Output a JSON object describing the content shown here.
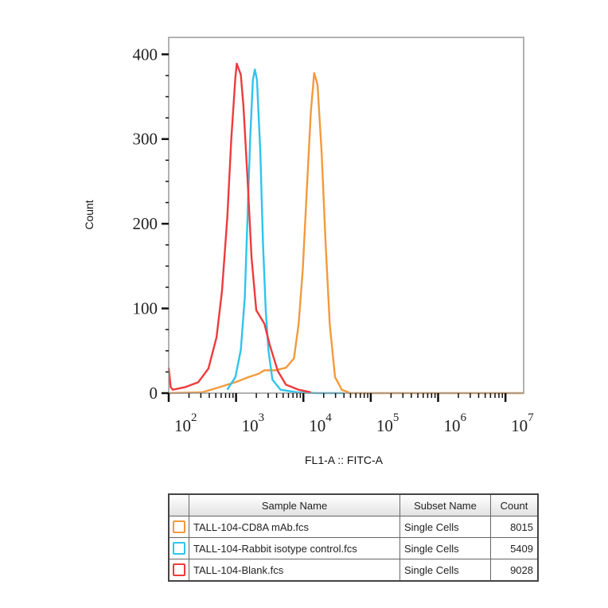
{
  "chart_data": {
    "type": "line",
    "xlabel": "FL1-A :: FITC-A",
    "ylabel": "Count",
    "x_scale": "log",
    "xlim": [
      100,
      18620871
    ],
    "ylim": [
      0,
      420
    ],
    "x_ticks": [
      100,
      1000,
      10000,
      100000,
      1000000,
      10000000
    ],
    "x_tick_labels": [
      {
        "base": "10",
        "exp": "2"
      },
      {
        "base": "10",
        "exp": "3"
      },
      {
        "base": "10",
        "exp": "4"
      },
      {
        "base": "10",
        "exp": "5"
      },
      {
        "base": "10",
        "exp": "6"
      },
      {
        "base": "10",
        "exp": "7"
      }
    ],
    "y_ticks": [
      0,
      100,
      200,
      300,
      400
    ],
    "y_tick_labels": [
      "0",
      "100",
      "200",
      "300",
      "400"
    ],
    "grid": false,
    "series": [
      {
        "name": "TALL-104-CD8A mAb.fcs",
        "color": "#f39a3c",
        "x": [
          100,
          316,
          562,
          977,
          1549,
          2188,
          2630,
          3802,
          5495,
          7244,
          8511,
          9772,
          11220,
          12882,
          14454,
          16218,
          18621,
          21380,
          24547,
          29512,
          37154,
          50119,
          18620871
        ],
        "y": [
          0,
          1,
          7,
          13,
          19,
          23,
          27,
          27,
          30,
          41,
          82,
          145,
          239,
          332,
          378,
          364,
          285,
          176,
          82,
          19,
          4,
          0,
          0
        ]
      },
      {
        "name": "TALL-104-Rabbit isotype control.fcs",
        "color": "#2ec4ee",
        "x": [
          741,
          977,
          1175,
          1349,
          1479,
          1622,
          1778,
          1905,
          2042,
          2291,
          2512,
          2754,
          3020,
          3467,
          4571,
          7943,
          15849,
          39811
        ],
        "y": [
          4,
          19,
          51,
          113,
          207,
          301,
          370,
          382,
          370,
          285,
          176,
          98,
          51,
          16,
          4,
          1,
          0,
          0
        ]
      },
      {
        "name": "TALL-104-Blank.fcs",
        "color": "#ee3a3c",
        "x": [
          100,
          107,
          115,
          174,
          275,
          389,
          513,
          617,
          741,
          851,
          977,
          1023,
          1175,
          1288,
          1479,
          1698,
          1995,
          2630,
          3162,
          4169,
          5495,
          8511,
          12882
        ],
        "y": [
          30,
          7,
          4,
          7,
          13,
          29,
          66,
          120,
          207,
          301,
          373,
          389,
          376,
          339,
          254,
          160,
          98,
          82,
          57,
          26,
          10,
          4,
          1
        ]
      }
    ]
  },
  "legend": {
    "headers": [
      "Sample Name",
      "Subset Name",
      "Count"
    ],
    "rows": [
      {
        "sample": "TALL-104-CD8A mAb.fcs",
        "subset": "Single Cells",
        "count": "8015",
        "color": "#f39a3c"
      },
      {
        "sample": "TALL-104-Rabbit isotype control.fcs",
        "subset": "Single Cells",
        "count": "5409",
        "color": "#2ec4ee"
      },
      {
        "sample": "TALL-104-Blank.fcs",
        "subset": "Single Cells",
        "count": "9028",
        "color": "#ee3a3c"
      }
    ]
  }
}
